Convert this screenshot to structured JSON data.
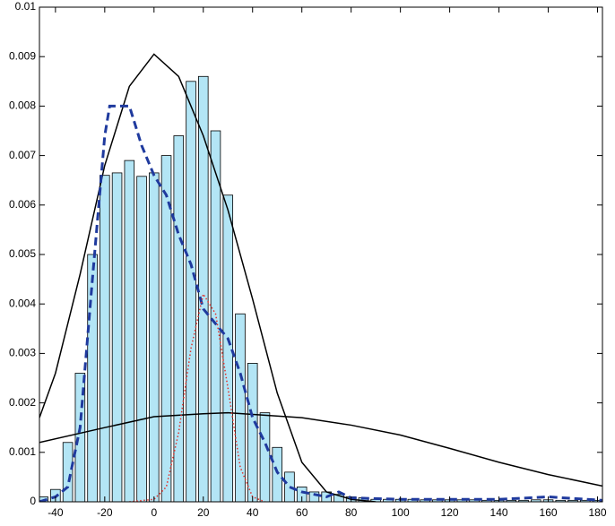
{
  "chart_data": {
    "type": "histogram",
    "bins": [
      -47.5,
      -42.5,
      -37.5,
      -32.5,
      -27.5,
      -22.5,
      -17.5,
      -12.5,
      -7.5,
      -2.5,
      2.5,
      7.5,
      12.5,
      17.5,
      22.5,
      27.5,
      32.5,
      37.5,
      42.5,
      47.5,
      52.5,
      57.5,
      62.5,
      67.5,
      72.5,
      77.5,
      82.5,
      87.5,
      92.5,
      97.5,
      102.5,
      107.5,
      112.5,
      117.5,
      122.5,
      127.5,
      132.5,
      137.5,
      142.5,
      147.5,
      152.5,
      157.5,
      162.5,
      167.5,
      172.5,
      177.5,
      182.5
    ],
    "counts": [
      0.0001,
      0.00025,
      0.0012,
      0.0026,
      0.005,
      0.0066,
      0.00665,
      0.0069,
      0.00658,
      0.00665,
      0.007,
      0.0074,
      0.0085,
      0.0086,
      0.0075,
      0.0062,
      0.0038,
      0.0028,
      0.0018,
      0.0011,
      0.0006,
      0.0003,
      0.0002,
      0.0002,
      0.00015,
      0.0001,
      8e-05,
      5e-05,
      5e-05,
      5e-05,
      5e-05,
      4e-05,
      4e-05,
      4e-05,
      4e-05,
      4e-05,
      3e-05,
      3e-05,
      3e-05,
      3e-05,
      4e-05,
      4e-05,
      3e-05,
      3e-05,
      3e-05,
      3e-05
    ],
    "color": "#b3e5f5",
    "series": [
      {
        "color": "#000000",
        "style": "solid",
        "x": [
          -46.5,
          -40,
          -30,
          -20,
          -10,
          0,
          10,
          20,
          30,
          40,
          50,
          60,
          70,
          80,
          90
        ],
        "values": [
          0.0017,
          0.0026,
          0.0046,
          0.0068,
          0.0084,
          0.00905,
          0.0086,
          0.0074,
          0.0059,
          0.0041,
          0.0022,
          0.0008,
          0.0002,
          5e-05,
          0
        ]
      },
      {
        "color": "#000000",
        "style": "solid",
        "x": [
          -46.5,
          -20,
          0,
          20,
          30,
          60,
          80,
          100,
          120,
          140,
          160,
          182
        ],
        "values": [
          0.0012,
          0.0015,
          0.00172,
          0.00178,
          0.0018,
          0.0017,
          0.00155,
          0.00135,
          0.00108,
          0.0008,
          0.00055,
          0.00032
        ]
      },
      {
        "color": "#1f3a9e",
        "style": "dashed",
        "x": [
          -46.5,
          -40,
          -35,
          -30,
          -25,
          -20,
          -18,
          -10,
          -5,
          0,
          5,
          10,
          15,
          20,
          25,
          30,
          35,
          40,
          45,
          50,
          55,
          60,
          70,
          75,
          80,
          100,
          140,
          160,
          182
        ],
        "values": [
          0,
          0.0001,
          0.0003,
          0.0015,
          0.0045,
          0.0074,
          0.008,
          0.008,
          0.0072,
          0.0066,
          0.0062,
          0.0054,
          0.0048,
          0.0039,
          0.0036,
          0.0033,
          0.0026,
          0.0017,
          0.0012,
          0.0006,
          0.0003,
          0.0002,
          0.0001,
          0.0002,
          8e-05,
          5e-05,
          5e-05,
          0.0001,
          3e-05
        ]
      },
      {
        "color": "#e0302a",
        "style": "dotted",
        "x": [
          -10,
          0,
          5,
          10,
          15,
          20,
          25,
          30,
          35,
          40,
          45
        ],
        "values": [
          0,
          5e-05,
          0.0003,
          0.0014,
          0.0031,
          0.0042,
          0.0038,
          0.0023,
          0.0007,
          0.0001,
          0
        ]
      }
    ],
    "xlim": [
      -46.5,
      182
    ],
    "ylim": [
      0,
      0.01
    ],
    "xticks": [
      -40,
      -20,
      0,
      20,
      40,
      60,
      80,
      100,
      120,
      140,
      160,
      180
    ],
    "yticks": [
      0,
      0.001,
      0.002,
      0.003,
      0.004,
      0.005,
      0.006,
      0.007,
      0.008,
      0.009,
      0.01
    ]
  }
}
